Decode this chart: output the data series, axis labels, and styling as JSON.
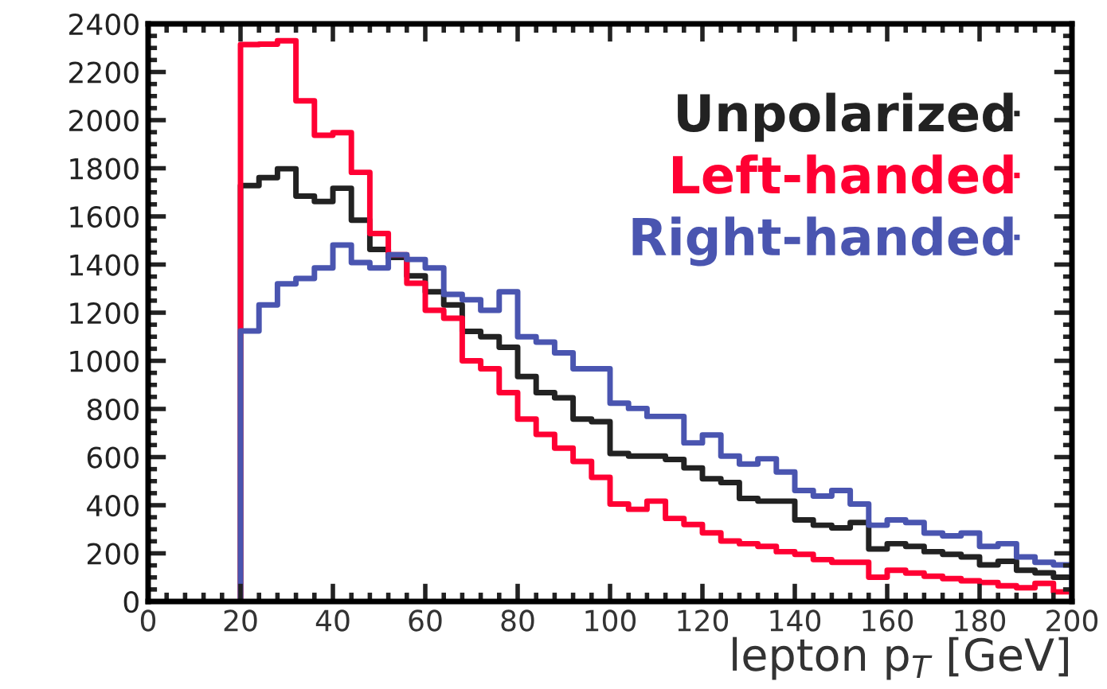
{
  "chart_data": {
    "type": "histogram",
    "xlabel": "lepton p$_{T}$ [GeV]",
    "bins": [
      20,
      24,
      28,
      32,
      36,
      40,
      44,
      48,
      52,
      56,
      60,
      64,
      68,
      72,
      76,
      80,
      84,
      88,
      92,
      96,
      100,
      104,
      108,
      112,
      116,
      120,
      124,
      128,
      132,
      136,
      140,
      144,
      148,
      152,
      156,
      160,
      164,
      168,
      172,
      176,
      180,
      184,
      188,
      192,
      196,
      200
    ],
    "series": [
      {
        "name": "Unpolarized",
        "color": "#222222",
        "values": [
          1728,
          1761,
          1798,
          1684,
          1662,
          1717,
          1584,
          1463,
          1430,
          1353,
          1287,
          1232,
          1122,
          1100,
          1056,
          935,
          868,
          846,
          758,
          747,
          615,
          604,
          604,
          590,
          555,
          510,
          494,
          428,
          417,
          417,
          339,
          317,
          306,
          328,
          218,
          240,
          229,
          207,
          196,
          185,
          152,
          167,
          130,
          119,
          101
        ]
      },
      {
        "name": "Left-handed",
        "color": "#ff0033",
        "values": [
          2314,
          2316,
          2330,
          2080,
          1937,
          1948,
          1783,
          1529,
          1441,
          1322,
          1210,
          1177,
          1000,
          967,
          868,
          758,
          694,
          637,
          582,
          516,
          405,
          383,
          417,
          345,
          320,
          285,
          251,
          240,
          229,
          207,
          196,
          174,
          163,
          163,
          101,
          130,
          118,
          105,
          95,
          86,
          79,
          65,
          57,
          75,
          40
        ]
      },
      {
        "name": "Right-handed",
        "color": "#4a55b0",
        "values": [
          1124,
          1232,
          1320,
          1342,
          1386,
          1481,
          1408,
          1386,
          1441,
          1421,
          1386,
          1276,
          1254,
          1210,
          1287,
          1100,
          1078,
          1033,
          967,
          967,
          824,
          802,
          769,
          769,
          659,
          692,
          604,
          571,
          593,
          538,
          461,
          438,
          461,
          405,
          317,
          339,
          328,
          284,
          273,
          284,
          229,
          240,
          185,
          163,
          152
        ]
      }
    ],
    "xlim": [
      0,
      200
    ],
    "xticks": [
      0,
      20,
      40,
      60,
      80,
      100,
      120,
      140,
      160,
      180,
      200
    ],
    "ylim": [
      0,
      2400
    ],
    "yticks": [
      0,
      200,
      400,
      600,
      800,
      1000,
      1200,
      1400,
      1600,
      1800,
      2000,
      2200,
      2400
    ],
    "legend": "top right",
    "grid": false
  }
}
